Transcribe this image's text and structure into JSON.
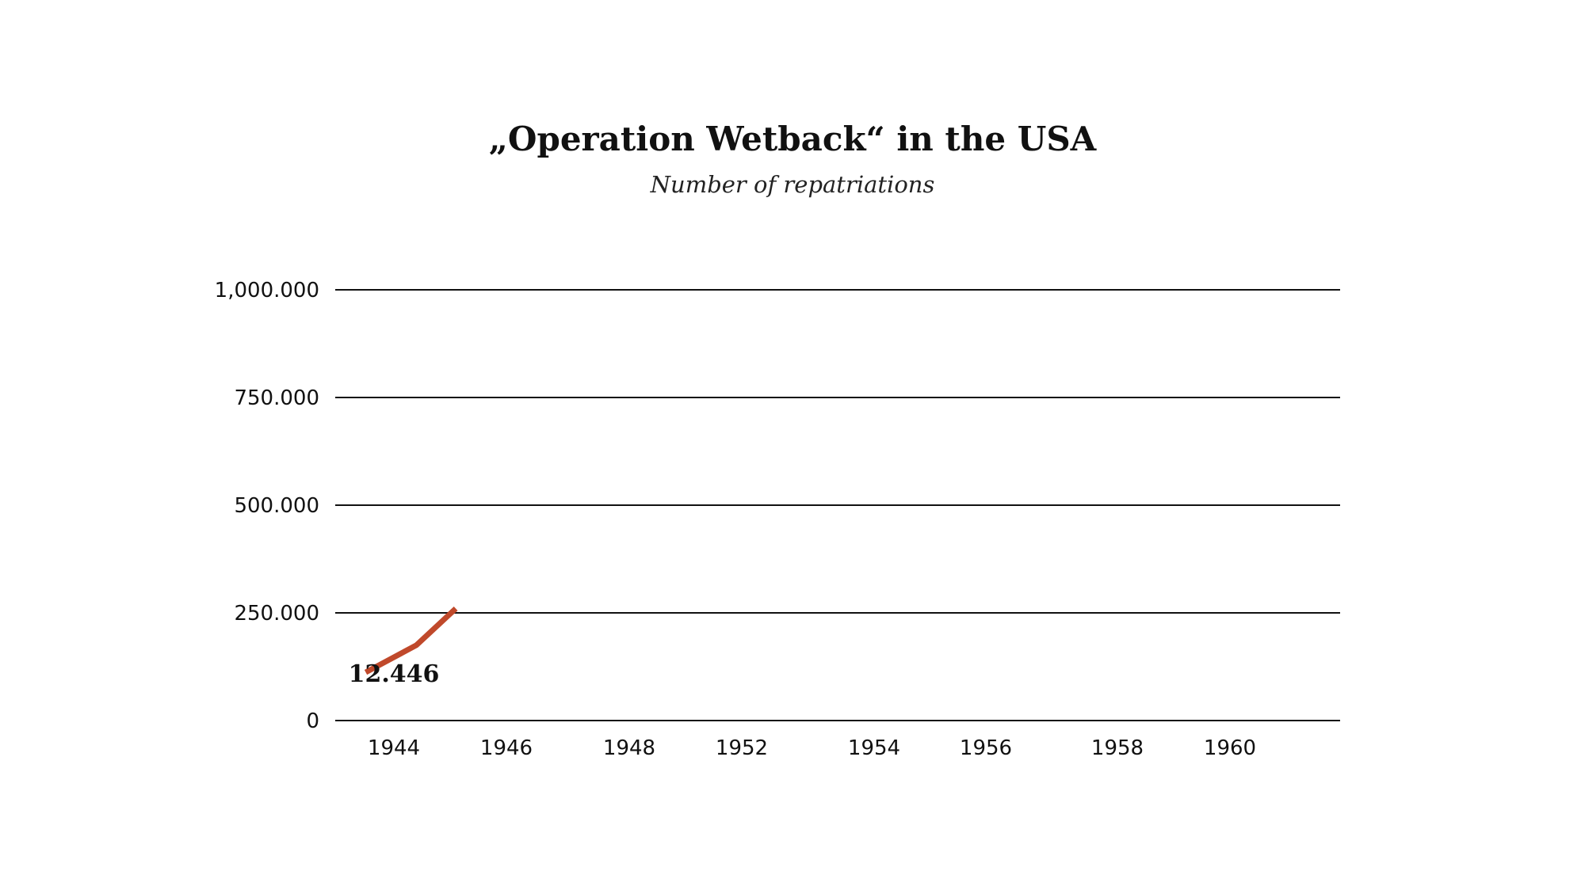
{
  "chart_data": {
    "type": "line",
    "title": "„Operation Wetback“ in the USA",
    "subtitle": "Number of repatriations",
    "xlabel": "",
    "ylabel": "",
    "x_ticks": [
      "1944",
      "1946",
      "1948",
      "1952",
      "1954",
      "1956",
      "1958",
      "1960"
    ],
    "y_ticks": [
      {
        "value": 0,
        "label": "0"
      },
      {
        "value": 250000,
        "label": "250.000"
      },
      {
        "value": 500000,
        "label": "500.000"
      },
      {
        "value": 750000,
        "label": "750.000"
      },
      {
        "value": 1000000,
        "label": "1,000.000"
      }
    ],
    "ylim": [
      0,
      1000000
    ],
    "grid": true,
    "series": [
      {
        "color": "#c0492b",
        "points": [
          {
            "x": 1943.5,
            "y": 112000
          },
          {
            "x": 1944.4,
            "y": 175000
          },
          {
            "x": 1945.1,
            "y": 260000
          }
        ]
      }
    ],
    "annotations": [
      {
        "text": "12.446",
        "x": 1944,
        "y": 90000
      }
    ]
  }
}
